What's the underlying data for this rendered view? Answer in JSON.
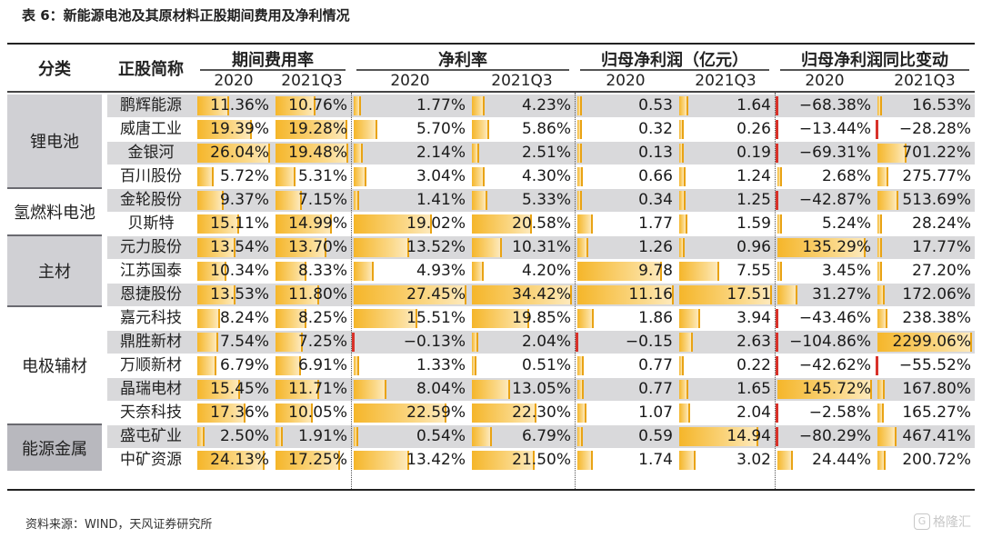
{
  "title": "表 6：新能源电池及其原材料正股期间费用及净利情况",
  "headers": {
    "category": "分类",
    "stock": "正股简称",
    "groups": [
      "期间费用率",
      "净利率",
      "归母净利润（亿元）",
      "归母净利润同比变动"
    ],
    "years": [
      "2020",
      "2021Q3",
      "2020",
      "2021Q3",
      "2020",
      "2021Q3",
      "2020",
      "2021Q3"
    ]
  },
  "categories": [
    {
      "name": "锂电池",
      "rows": 4
    },
    {
      "name": "氢燃料电池",
      "rows": 2
    },
    {
      "name": "主材",
      "rows": 3
    },
    {
      "name": "电极辅材",
      "rows": 5
    },
    {
      "name": "能源金属",
      "rows": 2
    }
  ],
  "rows": [
    {
      "name": "鹏辉能源",
      "cells": [
        "11.36%",
        "10.76%",
        "1.77%",
        "4.23%",
        "0.53",
        "1.64",
        "−68.38%",
        "16.53%"
      ]
    },
    {
      "name": "威唐工业",
      "cells": [
        "19.39%",
        "19.28%",
        "5.70%",
        "5.86%",
        "0.32",
        "0.26",
        "−13.44%",
        "−28.28%"
      ]
    },
    {
      "name": "金银河",
      "cells": [
        "26.04%",
        "19.48%",
        "2.14%",
        "2.51%",
        "0.13",
        "0.19",
        "−69.31%",
        "701.22%"
      ]
    },
    {
      "name": "百川股份",
      "cells": [
        "5.72%",
        "5.31%",
        "3.04%",
        "4.30%",
        "0.66",
        "1.24",
        "2.68%",
        "275.77%"
      ]
    },
    {
      "name": "金轮股份",
      "cells": [
        "9.37%",
        "7.15%",
        "1.41%",
        "5.33%",
        "0.34",
        "1.25",
        "−42.87%",
        "513.69%"
      ]
    },
    {
      "name": "贝斯特",
      "cells": [
        "15.11%",
        "14.99%",
        "19.02%",
        "20.58%",
        "1.77",
        "1.59",
        "5.24%",
        "28.24%"
      ]
    },
    {
      "name": "元力股份",
      "cells": [
        "13.54%",
        "13.70%",
        "13.52%",
        "10.31%",
        "1.26",
        "0.96",
        "135.29%",
        "17.77%"
      ]
    },
    {
      "name": "江苏国泰",
      "cells": [
        "10.34%",
        "8.33%",
        "4.93%",
        "4.20%",
        "9.78",
        "7.55",
        "3.45%",
        "27.20%"
      ]
    },
    {
      "name": "恩捷股份",
      "cells": [
        "13.53%",
        "11.80%",
        "27.45%",
        "34.42%",
        "11.16",
        "17.51",
        "31.27%",
        "172.06%"
      ]
    },
    {
      "name": "嘉元科技",
      "cells": [
        "8.24%",
        "8.25%",
        "15.51%",
        "19.85%",
        "1.86",
        "3.94",
        "−43.46%",
        "238.38%"
      ]
    },
    {
      "name": "鼎胜新材",
      "cells": [
        "7.54%",
        "7.25%",
        "−0.13%",
        "2.04%",
        "−0.15",
        "2.63",
        "−104.86%",
        "2299.06%"
      ]
    },
    {
      "name": "万顺新材",
      "cells": [
        "6.79%",
        "6.91%",
        "1.33%",
        "0.51%",
        "0.77",
        "0.22",
        "−42.62%",
        "−55.52%"
      ]
    },
    {
      "name": "晶瑞电材",
      "cells": [
        "15.45%",
        "11.71%",
        "8.04%",
        "13.05%",
        "0.77",
        "1.65",
        "145.72%",
        "167.80%"
      ]
    },
    {
      "name": "天奈科技",
      "cells": [
        "17.36%",
        "10.05%",
        "22.59%",
        "22.30%",
        "1.07",
        "2.04",
        "−2.58%",
        "165.27%"
      ]
    },
    {
      "name": "盛屯矿业",
      "cells": [
        "2.50%",
        "1.91%",
        "0.54%",
        "6.79%",
        "0.59",
        "14.94",
        "−80.29%",
        "467.41%"
      ]
    },
    {
      "name": "中矿资源",
      "cells": [
        "24.13%",
        "17.25%",
        "13.42%",
        "21.50%",
        "1.74",
        "3.02",
        "24.44%",
        "200.72%"
      ]
    }
  ],
  "source": "资料来源：WIND，天风证券研究所",
  "watermark": "格隆汇",
  "watermark_icon": "G",
  "colors": {
    "bar": "#f5b62a",
    "negative_bar": "#d8322a",
    "row_alt": "#d9d9db"
  }
}
